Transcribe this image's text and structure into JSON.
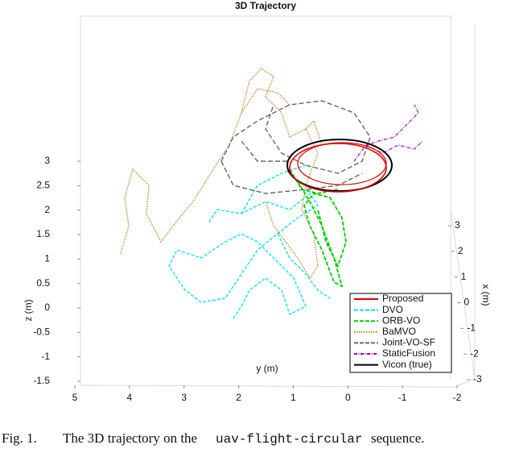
{
  "chart_data": {
    "type": "trajectory3d",
    "title": "3D Trajectory",
    "zlabel": "z (m)",
    "ylabel": "y (m)",
    "xlabel": "x (m)",
    "zlim": [
      -1.5,
      3
    ],
    "zticks": [
      -1.5,
      -1,
      -0.5,
      0,
      0.5,
      1,
      1.5,
      2,
      2.5,
      3
    ],
    "ylim": [
      5,
      -2
    ],
    "yticks": [
      5,
      4,
      3,
      2,
      1,
      0,
      -1,
      -2
    ],
    "xlim": [
      3,
      -3
    ],
    "xticks": [
      3,
      2,
      1,
      0,
      -1,
      -2,
      -3
    ],
    "legend": [
      {
        "name": "Proposed",
        "color": "#e00000",
        "dash": "solid"
      },
      {
        "name": "DVO",
        "color": "#00e0e8",
        "dash": "dashed"
      },
      {
        "name": "ORB-VO",
        "color": "#00d000",
        "dash": "dashed"
      },
      {
        "name": "BaMVO",
        "color": "#c08020",
        "dash": "dotted"
      },
      {
        "name": "Joint-VO-SF",
        "color": "#666666",
        "dash": "dashed"
      },
      {
        "name": "StaticFusion",
        "color": "#9a00c8",
        "dash": "dashdot"
      },
      {
        "name": "Vicon (true)",
        "color": "#000000",
        "dash": "solid"
      }
    ]
  },
  "caption": {
    "label": "Fig. 1.",
    "text": "The 3D trajectory on the",
    "code": "uav-flight-circular",
    "end": "sequence."
  }
}
